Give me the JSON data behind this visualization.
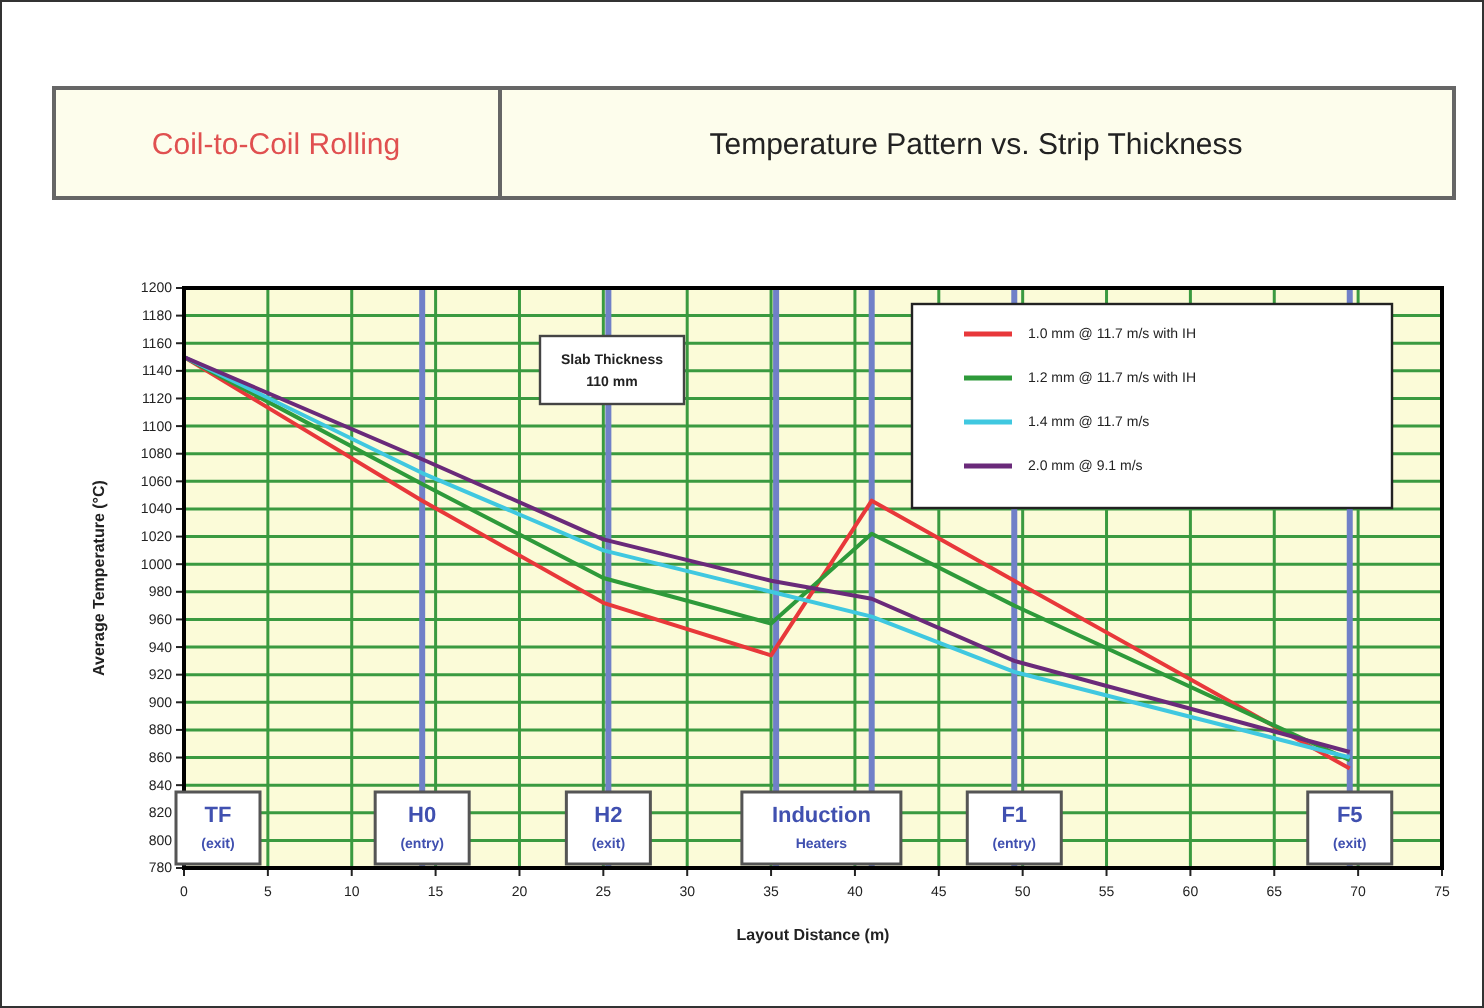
{
  "chart_data": {
    "type": "line",
    "title": "Coil-to-Coil Rolling",
    "subtitle": "Temperature Pattern vs. Strip Thickness",
    "xlabel": "Layout Distance (m)",
    "ylabel": "Average Temperature (°C)",
    "x": [
      0,
      14.2,
      25,
      35,
      41,
      49.5,
      69.5
    ],
    "series": [
      {
        "name": "1.0 mm @ 11.7 m/s with IH",
        "color": "#e8383a",
        "values": [
          1150,
          1046,
          972,
          934,
          1046,
          988,
          852
        ]
      },
      {
        "name": "1.2 mm @ 11.7 m/s with IH",
        "color": "#2e9a3a",
        "values": [
          1150,
          1058,
          990,
          957,
          1022,
          970,
          858
        ]
      },
      {
        "name": "1.4 mm @ 11.7 m/s",
        "color": "#40c8e0",
        "values": [
          1150,
          1066,
          1010,
          980,
          962,
          922,
          860
        ]
      },
      {
        "name": "2.0 mm @ 9.1 m/s",
        "color": "#6a2a7a",
        "values": [
          1150,
          1076,
          1018,
          988,
          975,
          930,
          864
        ]
      }
    ],
    "xlim": [
      0,
      75
    ],
    "xticks": [
      0,
      5,
      10,
      15,
      20,
      25,
      30,
      35,
      40,
      45,
      50,
      55,
      60,
      65,
      70,
      75
    ],
    "ylim": [
      780,
      1200
    ],
    "yticks": [
      780,
      800,
      820,
      840,
      860,
      880,
      900,
      920,
      940,
      960,
      980,
      1000,
      1020,
      1040,
      1060,
      1080,
      1100,
      1120,
      1140,
      1160,
      1180,
      1200
    ],
    "grid": true,
    "legend": "top right",
    "marker": "none",
    "line_style": "solid",
    "ref_lines": [
      {
        "axis": "x",
        "value": 14.2,
        "color": "#7080c8",
        "label": "H0\n(entry)"
      },
      {
        "axis": "x",
        "value": 25.3,
        "color": "#7080c8",
        "label": "H2\n(exit)"
      },
      {
        "axis": "x",
        "value": 35.3,
        "color": "#7080c8"
      },
      {
        "axis": "x",
        "value": 41,
        "color": "#7080c8"
      },
      {
        "axis": "x",
        "value": 49.5,
        "color": "#7080c8",
        "label": "F1\n(entry)"
      },
      {
        "axis": "x",
        "value": 69.5,
        "color": "#7080c8",
        "label": "F5\n(exit)"
      }
    ],
    "annotations": [
      "Slab Thickness\n110 mm",
      "TF\n(exit)",
      "Induction\nHeaters"
    ]
  }
}
